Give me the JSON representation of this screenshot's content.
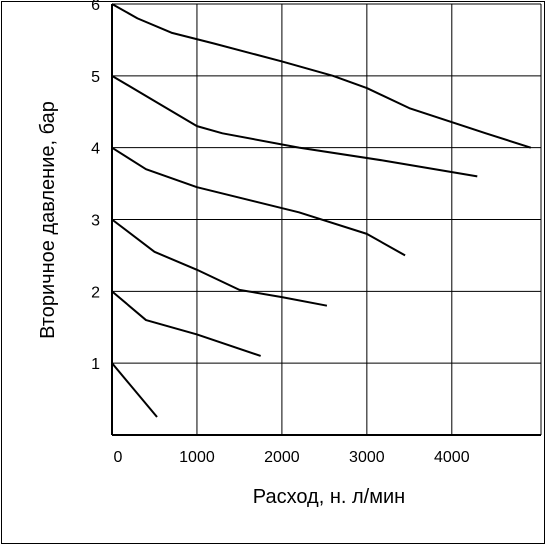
{
  "chart_data": {
    "type": "line",
    "xlabel": "Расход, н. л/мин",
    "ylabel": "Вторичное давление, бар",
    "xlim": [
      0,
      5000
    ],
    "ylim": [
      0,
      6
    ],
    "x_ticks": [
      0,
      1000,
      2000,
      3000,
      4000
    ],
    "x_tick_labels": [
      "0",
      "1000",
      "2000",
      "3000",
      "4000"
    ],
    "y_ticks": [
      1,
      2,
      3,
      4,
      5,
      6
    ],
    "y_tick_labels": [
      "1",
      "2",
      "3",
      "4",
      "5",
      "6"
    ],
    "grid": true,
    "legend": "none",
    "line_color": "#000000",
    "series": [
      {
        "points": [
          [
            0,
            6.0
          ],
          [
            300,
            5.8
          ],
          [
            700,
            5.6
          ],
          [
            1200,
            5.45
          ],
          [
            2000,
            5.2
          ],
          [
            2600,
            5.0
          ],
          [
            3000,
            4.83
          ],
          [
            3500,
            4.55
          ],
          [
            4400,
            4.2
          ],
          [
            4930,
            4.0
          ]
        ]
      },
      {
        "points": [
          [
            0,
            5.0
          ],
          [
            500,
            4.65
          ],
          [
            1000,
            4.3
          ],
          [
            1300,
            4.2
          ],
          [
            2200,
            4.0
          ],
          [
            3200,
            3.82
          ],
          [
            4300,
            3.6
          ]
        ]
      },
      {
        "points": [
          [
            0,
            4.0
          ],
          [
            400,
            3.7
          ],
          [
            1000,
            3.45
          ],
          [
            2200,
            3.1
          ],
          [
            3000,
            2.8
          ],
          [
            3450,
            2.5
          ]
        ]
      },
      {
        "points": [
          [
            0,
            3.0
          ],
          [
            500,
            2.55
          ],
          [
            1000,
            2.3
          ],
          [
            1500,
            2.02
          ],
          [
            2000,
            1.92
          ],
          [
            2530,
            1.8
          ]
        ]
      },
      {
        "points": [
          [
            0,
            2.0
          ],
          [
            400,
            1.6
          ],
          [
            1000,
            1.4
          ],
          [
            1750,
            1.1
          ]
        ]
      },
      {
        "points": [
          [
            0,
            1.0
          ],
          [
            530,
            0.25
          ]
        ]
      }
    ]
  }
}
